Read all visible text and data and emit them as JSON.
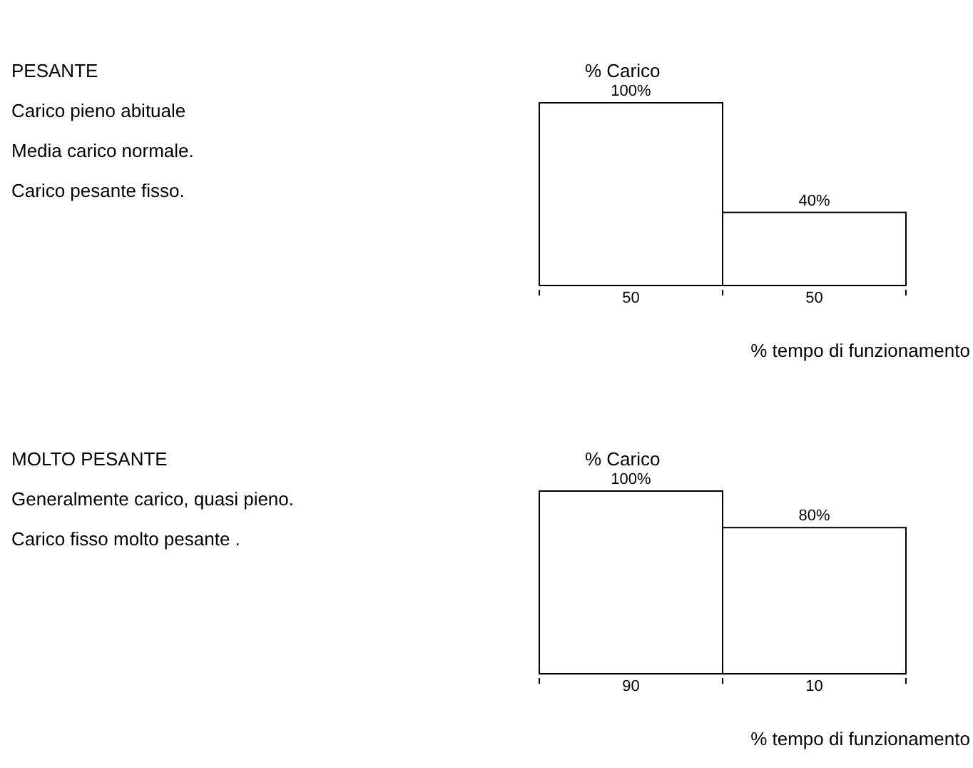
{
  "chart_data": [
    {
      "type": "bar",
      "ylabel": "% Carico",
      "xlabel": "% tempo di funzionamento",
      "categories": [
        "50",
        "50"
      ],
      "values": [
        100,
        40
      ],
      "value_labels": [
        "100%",
        "40%"
      ],
      "color": "#ffffff",
      "annotations": [
        "PESANTE",
        "Carico pieno abituale",
        "Media carico normale.",
        "Carico pesante fisso."
      ]
    },
    {
      "type": "bar",
      "ylabel": "% Carico",
      "xlabel": "% tempo di funzionamento",
      "categories": [
        "90",
        "10"
      ],
      "values": [
        100,
        80
      ],
      "value_labels": [
        "100%",
        "80%"
      ],
      "color": "#ffffff",
      "annotations": [
        "MOLTO PESANTE",
        "Generalmente carico, quasi pieno.",
        "Carico fisso molto pesante ."
      ]
    }
  ]
}
